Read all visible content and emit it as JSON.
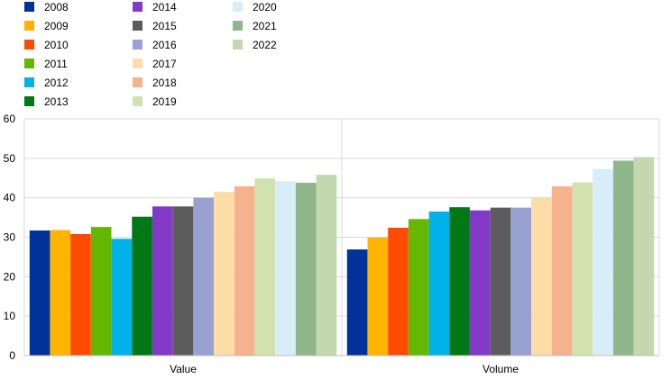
{
  "chart_data": {
    "type": "bar",
    "categories": [
      "Value",
      "Volume"
    ],
    "ylim": [
      0,
      60
    ],
    "yticks": [
      0,
      10,
      20,
      30,
      40,
      50,
      60
    ],
    "grid": true,
    "legend_placement": "top-left",
    "series": [
      {
        "name": "2008",
        "color": "#003299",
        "values": [
          31.7,
          26.9
        ]
      },
      {
        "name": "2009",
        "color": "#FFB400",
        "values": [
          31.8,
          29.9
        ]
      },
      {
        "name": "2010",
        "color": "#FF4B00",
        "values": [
          30.8,
          32.4
        ]
      },
      {
        "name": "2011",
        "color": "#65B800",
        "values": [
          32.6,
          34.6
        ]
      },
      {
        "name": "2012",
        "color": "#00B1EA",
        "values": [
          29.6,
          36.5
        ]
      },
      {
        "name": "2013",
        "color": "#007816",
        "values": [
          35.2,
          37.6
        ]
      },
      {
        "name": "2014",
        "color": "#8139C6",
        "values": [
          37.8,
          36.8
        ]
      },
      {
        "name": "2015",
        "color": "#5C5C5C",
        "values": [
          37.8,
          37.5
        ]
      },
      {
        "name": "2016",
        "color": "#98A1D0",
        "values": [
          40.0,
          37.5
        ]
      },
      {
        "name": "2017",
        "color": "#FDDDA7",
        "values": [
          41.5,
          40.0
        ]
      },
      {
        "name": "2018",
        "color": "#F6B28D",
        "values": [
          42.9,
          42.9
        ]
      },
      {
        "name": "2019",
        "color": "#D2E2AE",
        "values": [
          44.9,
          43.9
        ]
      },
      {
        "name": "2020",
        "color": "#D7EDF8",
        "values": [
          44.2,
          47.3
        ]
      },
      {
        "name": "2021",
        "color": "#8FB78B",
        "values": [
          43.8,
          49.4
        ]
      },
      {
        "name": "2022",
        "color": "#C3D8AC",
        "values": [
          45.8,
          50.3
        ]
      }
    ]
  }
}
